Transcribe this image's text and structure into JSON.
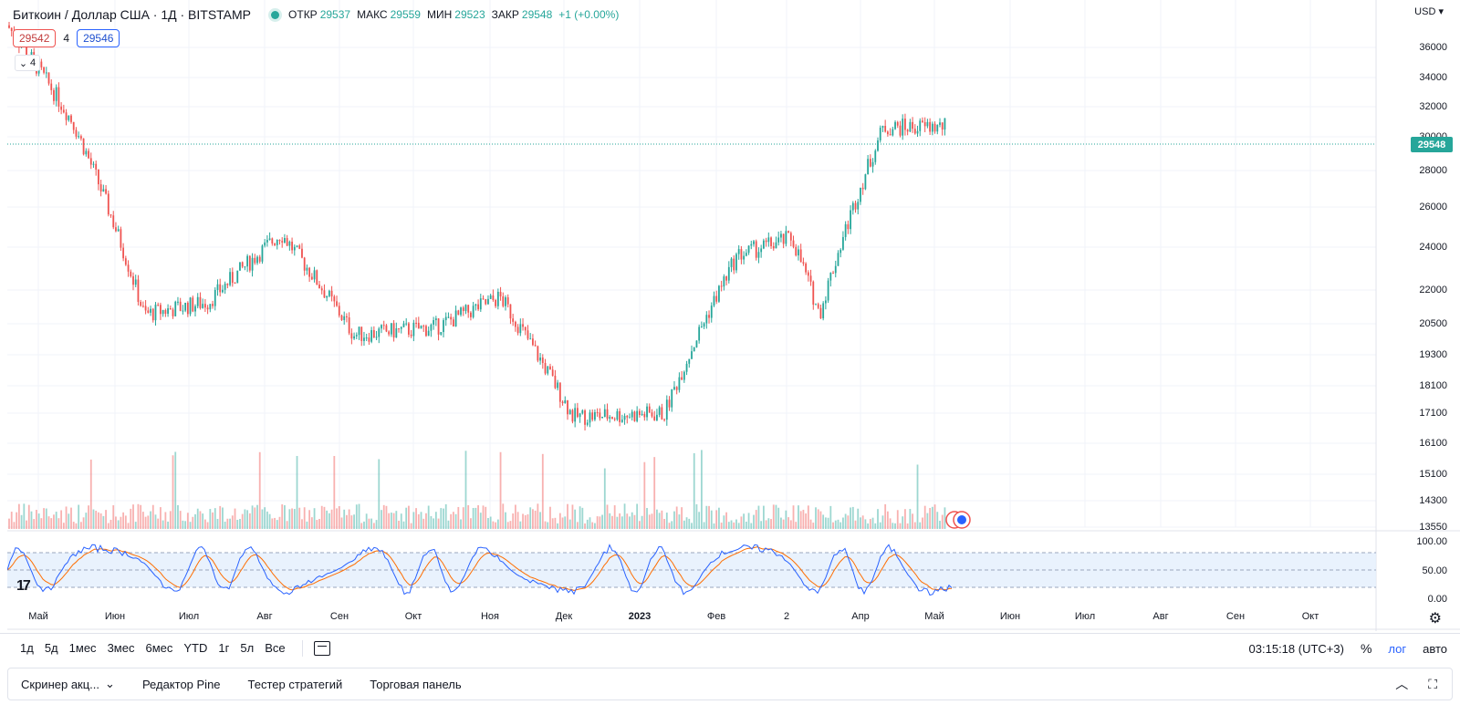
{
  "symbol": {
    "title": "Биткоин / Доллар США · 1Д · BITSTAMP",
    "ohlc": [
      {
        "k": "ОТКР",
        "v": "29537"
      },
      {
        "k": "МАКС",
        "v": "29559"
      },
      {
        "k": "МИН",
        "v": "29523"
      },
      {
        "k": "ЗАКР",
        "v": "29548"
      },
      {
        "k": "",
        "v": "+1 (+0.00%)"
      }
    ]
  },
  "quotes": {
    "sell": "29542",
    "spread": "4",
    "buy": "29546"
  },
  "indicators_collapse": {
    "count": "4"
  },
  "currency": "USD",
  "last_price": "29548",
  "yaxis": [
    "36000",
    "34000",
    "32000",
    "30000",
    "28000",
    "26000",
    "24000",
    "22000",
    "20500",
    "19300",
    "18100",
    "17100",
    "16100",
    "15100",
    "14300",
    "13550"
  ],
  "indicator_axis": [
    "100.00",
    "50.00",
    "0.00"
  ],
  "xaxis": [
    {
      "label": "Май",
      "bold": false
    },
    {
      "label": "Июн",
      "bold": false
    },
    {
      "label": "Июл",
      "bold": false
    },
    {
      "label": "Авг",
      "bold": false
    },
    {
      "label": "Сен",
      "bold": false
    },
    {
      "label": "Окт",
      "bold": false
    },
    {
      "label": "Ноя",
      "bold": false
    },
    {
      "label": "Дек",
      "bold": false
    },
    {
      "label": "2023",
      "bold": true
    },
    {
      "label": "Фев",
      "bold": false
    },
    {
      "label": "2",
      "bold": false
    },
    {
      "label": "Апр",
      "bold": false
    },
    {
      "label": "Май",
      "bold": false
    },
    {
      "label": "Июн",
      "bold": false
    },
    {
      "label": "Июл",
      "bold": false
    },
    {
      "label": "Авг",
      "bold": false
    },
    {
      "label": "Сен",
      "bold": false
    },
    {
      "label": "Окт",
      "bold": false
    }
  ],
  "ranges": [
    "1д",
    "5д",
    "1мес",
    "3мес",
    "6мес",
    "YTD",
    "1г",
    "5л",
    "Все"
  ],
  "toolbar_right": {
    "time": "03:15:18 (UTC+3)",
    "percent": "%",
    "log": "лог",
    "auto": "авто"
  },
  "panel_tabs": [
    "Скринер акц...",
    "Редактор Pine",
    "Тестер стратегий",
    "Торговая панель"
  ],
  "chart_data": {
    "type": "candlestick",
    "series_label": "BTC/USD 1D BITSTAMP",
    "x": [
      "2022-05",
      "2022-06",
      "2022-07",
      "2022-08",
      "2022-09",
      "2022-10",
      "2022-11",
      "2022-12",
      "2023-01",
      "2023-02",
      "2023-03",
      "2023-04",
      "2023-05"
    ],
    "close_approx": [
      30000,
      19500,
      21000,
      23800,
      20000,
      19500,
      17000,
      16900,
      21400,
      23000,
      24800,
      29800,
      29548
    ],
    "ylim": [
      13550,
      36500
    ],
    "yscale": "log",
    "colors": {
      "up": "#26a69a",
      "down": "#ef5350",
      "stoch_k": "#2962ff",
      "stoch_d": "#ff6d00"
    }
  }
}
